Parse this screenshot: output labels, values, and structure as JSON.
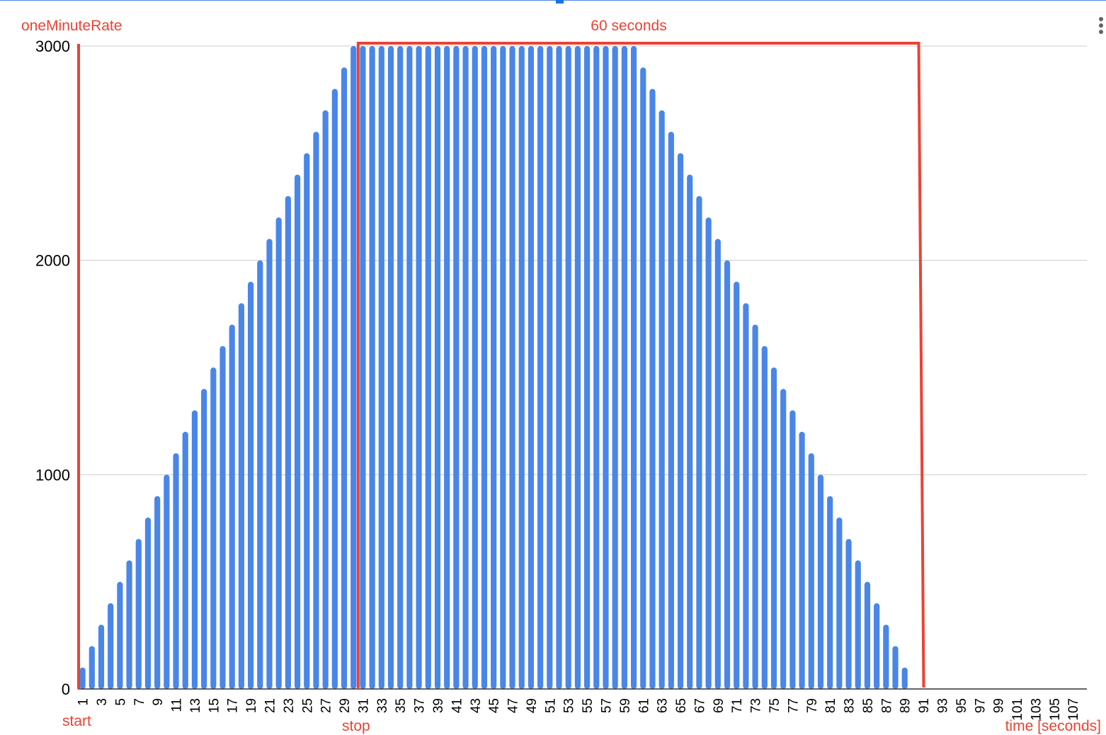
{
  "chart_data": {
    "type": "bar",
    "title": "",
    "ylabel": "oneMinuteRate",
    "xlabel": "time [seconds]",
    "ylim": [
      0,
      3000
    ],
    "yticks": [
      "0",
      "1000",
      "2000",
      "3000"
    ],
    "grid": true,
    "bar_color": "#4a86e8",
    "categories": [
      "1",
      "2",
      "3",
      "4",
      "5",
      "6",
      "7",
      "8",
      "9",
      "10",
      "11",
      "12",
      "13",
      "14",
      "15",
      "16",
      "17",
      "18",
      "19",
      "20",
      "21",
      "22",
      "23",
      "24",
      "25",
      "26",
      "27",
      "28",
      "29",
      "30",
      "31",
      "32",
      "33",
      "34",
      "35",
      "36",
      "37",
      "38",
      "39",
      "40",
      "41",
      "42",
      "43",
      "44",
      "45",
      "46",
      "47",
      "48",
      "49",
      "50",
      "51",
      "52",
      "53",
      "54",
      "55",
      "56",
      "57",
      "58",
      "59",
      "60",
      "61",
      "62",
      "63",
      "64",
      "65",
      "66",
      "67",
      "68",
      "69",
      "70",
      "71",
      "72",
      "73",
      "74",
      "75",
      "76",
      "77",
      "78",
      "79",
      "80",
      "81",
      "82",
      "83",
      "84",
      "85",
      "86",
      "87",
      "88",
      "89",
      "90",
      "91",
      "92",
      "93",
      "94",
      "95",
      "96",
      "97",
      "98",
      "99",
      "100",
      "101",
      "102",
      "103",
      "104",
      "105",
      "106",
      "107",
      "108"
    ],
    "values": [
      100,
      200,
      300,
      400,
      500,
      600,
      700,
      800,
      900,
      1000,
      1100,
      1200,
      1300,
      1400,
      1500,
      1600,
      1700,
      1800,
      1900,
      2000,
      2100,
      2200,
      2300,
      2400,
      2500,
      2600,
      2700,
      2800,
      2900,
      3000,
      3000,
      3000,
      3000,
      3000,
      3000,
      3000,
      3000,
      3000,
      3000,
      3000,
      3000,
      3000,
      3000,
      3000,
      3000,
      3000,
      3000,
      3000,
      3000,
      3000,
      3000,
      3000,
      3000,
      3000,
      3000,
      3000,
      3000,
      3000,
      3000,
      3000,
      2900,
      2800,
      2700,
      2600,
      2500,
      2400,
      2300,
      2200,
      2100,
      2000,
      1900,
      1800,
      1700,
      1600,
      1500,
      1400,
      1300,
      1200,
      1100,
      1000,
      900,
      800,
      700,
      600,
      500,
      400,
      300,
      200,
      100,
      0,
      0,
      0,
      0,
      0,
      0,
      0,
      0,
      0,
      0,
      0,
      0,
      0,
      0,
      0,
      0,
      0,
      0,
      0
    ],
    "xticks_shown": [
      "1",
      "3",
      "5",
      "7",
      "9",
      "11",
      "13",
      "15",
      "17",
      "19",
      "21",
      "23",
      "25",
      "27",
      "29",
      "31",
      "33",
      "35",
      "37",
      "39",
      "41",
      "43",
      "45",
      "47",
      "49",
      "51",
      "53",
      "55",
      "57",
      "59",
      "61",
      "63",
      "65",
      "67",
      "69",
      "71",
      "73",
      "75",
      "77",
      "79",
      "81",
      "83",
      "85",
      "87",
      "89",
      "91",
      "93",
      "95",
      "97",
      "99",
      "101",
      "103",
      "105",
      "107"
    ],
    "annotations": {
      "color": "#ea4335",
      "window_label": "60 seconds",
      "start_label": "start",
      "stop_label": "stop",
      "start_at": 0,
      "stop_at": 30,
      "window_end_at": 90
    }
  }
}
